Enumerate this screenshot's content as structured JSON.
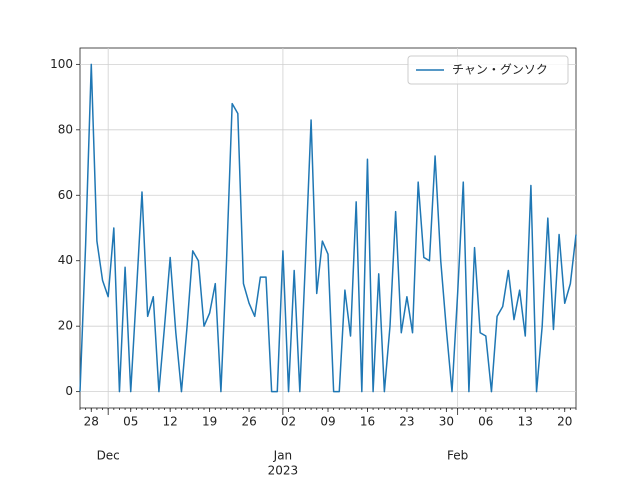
{
  "chart_data": {
    "type": "line",
    "x": [
      "2022-11-26",
      "2022-11-27",
      "2022-11-28",
      "2022-11-29",
      "2022-11-30",
      "2022-12-01",
      "2022-12-02",
      "2022-12-03",
      "2022-12-04",
      "2022-12-05",
      "2022-12-06",
      "2022-12-07",
      "2022-12-08",
      "2022-12-09",
      "2022-12-10",
      "2022-12-11",
      "2022-12-12",
      "2022-12-13",
      "2022-12-14",
      "2022-12-15",
      "2022-12-16",
      "2022-12-17",
      "2022-12-18",
      "2022-12-19",
      "2022-12-20",
      "2022-12-21",
      "2022-12-22",
      "2022-12-23",
      "2022-12-24",
      "2022-12-25",
      "2022-12-26",
      "2022-12-27",
      "2022-12-28",
      "2022-12-29",
      "2022-12-30",
      "2022-12-31",
      "2023-01-01",
      "2023-01-02",
      "2023-01-03",
      "2023-01-04",
      "2023-01-05",
      "2023-01-06",
      "2023-01-07",
      "2023-01-08",
      "2023-01-09",
      "2023-01-10",
      "2023-01-11",
      "2023-01-12",
      "2023-01-13",
      "2023-01-14",
      "2023-01-15",
      "2023-01-16",
      "2023-01-17",
      "2023-01-18",
      "2023-01-19",
      "2023-01-20",
      "2023-01-21",
      "2023-01-22",
      "2023-01-23",
      "2023-01-24",
      "2023-01-25",
      "2023-01-26",
      "2023-01-27",
      "2023-01-28",
      "2023-01-29",
      "2023-01-30",
      "2023-01-31",
      "2023-02-01",
      "2023-02-02",
      "2023-02-03",
      "2023-02-04",
      "2023-02-05",
      "2023-02-06",
      "2023-02-07",
      "2023-02-08",
      "2023-02-09",
      "2023-02-10",
      "2023-02-11",
      "2023-02-12",
      "2023-02-13",
      "2023-02-14",
      "2023-02-15",
      "2023-02-16",
      "2023-02-17",
      "2023-02-18",
      "2023-02-19",
      "2023-02-20",
      "2023-02-21",
      "2023-02-22"
    ],
    "series": [
      {
        "name": "チャン・グンソク",
        "color": "#1f77b4",
        "values": [
          0,
          45,
          100,
          46,
          34,
          29,
          50,
          0,
          38,
          0,
          30,
          61,
          23,
          29,
          0,
          20,
          41,
          18,
          0,
          20,
          43,
          40,
          20,
          24,
          33,
          0,
          40,
          88,
          85,
          33,
          27,
          23,
          35,
          35,
          0,
          0,
          43,
          0,
          37,
          0,
          40,
          83,
          30,
          46,
          42,
          0,
          0,
          31,
          17,
          58,
          0,
          71,
          0,
          36,
          0,
          20,
          55,
          18,
          29,
          18,
          64,
          41,
          40,
          72,
          40,
          19,
          0,
          30,
          64,
          0,
          44,
          18,
          17,
          0,
          23,
          26,
          37,
          22,
          31,
          17,
          63,
          0,
          20,
          53,
          19,
          48,
          27,
          33,
          48
        ]
      }
    ],
    "xlim": [
      "2022-11-26",
      "2023-02-22"
    ],
    "xticks": [
      {
        "value": "2022-11-28",
        "label": "28"
      },
      {
        "value": "2022-12-05",
        "label": "05"
      },
      {
        "value": "2022-12-12",
        "label": "12"
      },
      {
        "value": "2022-12-19",
        "label": "19"
      },
      {
        "value": "2022-12-26",
        "label": "26"
      },
      {
        "value": "2023-01-02",
        "label": "02"
      },
      {
        "value": "2023-01-09",
        "label": "09"
      },
      {
        "value": "2023-01-16",
        "label": "16"
      },
      {
        "value": "2023-01-23",
        "label": "23"
      },
      {
        "value": "2023-01-30",
        "label": "30"
      },
      {
        "value": "2023-02-06",
        "label": "06"
      },
      {
        "value": "2023-02-13",
        "label": "13"
      },
      {
        "value": "2023-02-20",
        "label": "20"
      }
    ],
    "month_ticks": [
      {
        "value": "2022-12-01",
        "label": "Dec"
      },
      {
        "value": "2023-01-01",
        "label": "Jan"
      },
      {
        "value": "2023-02-01",
        "label": "Feb"
      }
    ],
    "year_label": {
      "value": "2023-01-01",
      "label": "2023"
    },
    "ylim": [
      -5,
      105
    ],
    "yticks": [
      0,
      20,
      40,
      60,
      80,
      100
    ],
    "grid": true,
    "legend": "upper right"
  }
}
